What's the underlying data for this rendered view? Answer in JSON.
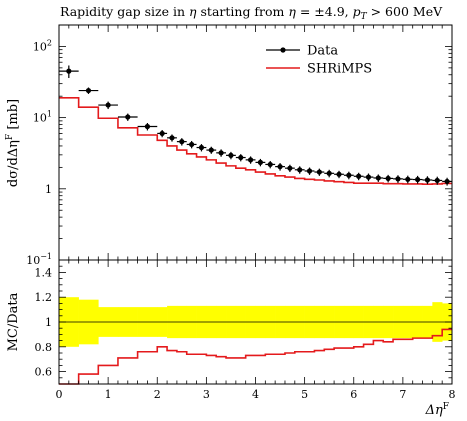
{
  "chart_data": {
    "type": "line",
    "title": "Rapidity gap size in η starting from η = ±4.9, pT > 600 MeV",
    "title_parts": {
      "lead": "Rapidity gap size in ",
      "eta1": "η",
      "mid": " starting from ",
      "eta2": "η",
      "eq": " = ±4.9, ",
      "p": "p",
      "sub": "T",
      "cut": " > 600 MeV"
    },
    "xlabel": "Δη",
    "xlabel_sup": "F",
    "ylabel": "dσ/dΔη",
    "ylabel_sup": "F",
    "ylabel_unit": " [mb]",
    "ratio_ylabel": "MC/Data",
    "xlim": [
      0,
      8
    ],
    "ylim": [
      0.1,
      200
    ],
    "yscale": "log",
    "ratio_ylim": [
      0.5,
      1.5
    ],
    "legend_position": "top-right",
    "xticks": [
      "0",
      "1",
      "2",
      "3",
      "4",
      "5",
      "6",
      "7",
      "8"
    ],
    "yticks_main": [
      {
        "value": 0.1,
        "base": "10",
        "exp": "−1"
      },
      {
        "value": 1,
        "base": "1",
        "exp": ""
      },
      {
        "value": 10,
        "base": "10",
        "exp": "1"
      },
      {
        "value": 100,
        "base": "10",
        "exp": "2"
      }
    ],
    "yticks_ratio": [
      "0.6",
      "0.8",
      "1",
      "1.2",
      "1.4"
    ],
    "bin_edges": [
      0,
      0.4,
      0.8,
      1.2,
      1.6,
      2.0,
      2.2,
      2.4,
      2.6,
      2.8,
      3.0,
      3.2,
      3.4,
      3.6,
      3.8,
      4.0,
      4.2,
      4.4,
      4.6,
      4.8,
      5.0,
      5.2,
      5.4,
      5.6,
      5.8,
      6.0,
      6.2,
      6.4,
      6.6,
      6.8,
      7.0,
      7.2,
      7.4,
      7.6,
      7.8,
      8.0
    ],
    "series": [
      {
        "name": "Data",
        "color": "#000000",
        "values": [
          45,
          24,
          15,
          10.2,
          7.5,
          6.0,
          5.2,
          4.6,
          4.2,
          3.8,
          3.5,
          3.2,
          2.95,
          2.75,
          2.55,
          2.35,
          2.2,
          2.05,
          1.95,
          1.85,
          1.78,
          1.72,
          1.65,
          1.6,
          1.55,
          1.5,
          1.46,
          1.42,
          1.4,
          1.38,
          1.36,
          1.35,
          1.33,
          1.31,
          1.27
        ],
        "errors": [
          9,
          2.5,
          1.8,
          1.2,
          0.9,
          0.7,
          0.6,
          0.55,
          0.5,
          0.45,
          0.4,
          0.38,
          0.35,
          0.32,
          0.3,
          0.28,
          0.26,
          0.25,
          0.23,
          0.22,
          0.21,
          0.2,
          0.2,
          0.19,
          0.19,
          0.18,
          0.18,
          0.17,
          0.17,
          0.17,
          0.17,
          0.17,
          0.17,
          0.17,
          0.16
        ]
      },
      {
        "name": "SHRiMPS",
        "color": "#e41a1c",
        "values": [
          19,
          14,
          9.8,
          7.2,
          5.7,
          4.8,
          4.0,
          3.5,
          3.1,
          2.8,
          2.55,
          2.3,
          2.1,
          1.95,
          1.85,
          1.72,
          1.62,
          1.52,
          1.46,
          1.4,
          1.36,
          1.33,
          1.29,
          1.26,
          1.23,
          1.2,
          1.2,
          1.2,
          1.18,
          1.18,
          1.17,
          1.17,
          1.16,
          1.17,
          1.19
        ]
      }
    ],
    "ratio": {
      "mc_over_data": [
        0.42,
        0.58,
        0.65,
        0.71,
        0.76,
        0.8,
        0.77,
        0.76,
        0.74,
        0.74,
        0.73,
        0.72,
        0.71,
        0.71,
        0.73,
        0.73,
        0.74,
        0.74,
        0.75,
        0.76,
        0.76,
        0.77,
        0.78,
        0.79,
        0.79,
        0.8,
        0.82,
        0.85,
        0.84,
        0.86,
        0.86,
        0.87,
        0.87,
        0.89,
        0.94
      ],
      "band_half_width": [
        0.2,
        0.18,
        0.12,
        0.12,
        0.12,
        0.12,
        0.13,
        0.13,
        0.13,
        0.13,
        0.13,
        0.13,
        0.13,
        0.13,
        0.13,
        0.13,
        0.13,
        0.13,
        0.13,
        0.13,
        0.13,
        0.13,
        0.13,
        0.13,
        0.13,
        0.13,
        0.13,
        0.13,
        0.13,
        0.13,
        0.13,
        0.13,
        0.13,
        0.16,
        0.15
      ],
      "band_color": "#ffff00"
    }
  }
}
